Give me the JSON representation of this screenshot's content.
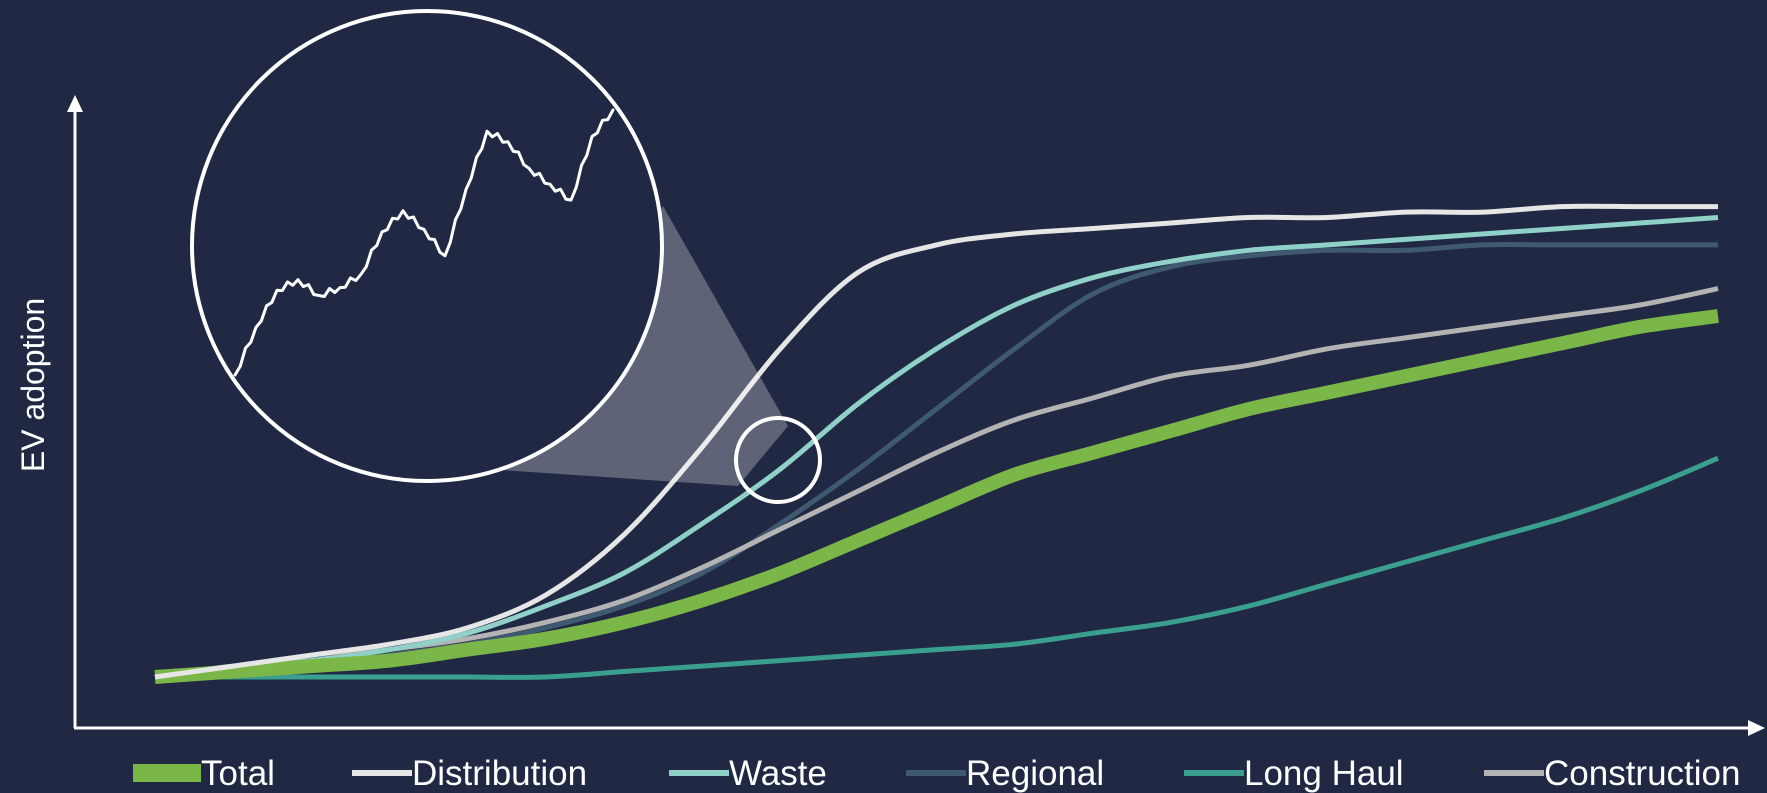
{
  "chart_data": {
    "type": "line",
    "title": "",
    "xlabel": "",
    "ylabel": "EV adoption",
    "legend_position": "bottom",
    "x_ticks": "none",
    "y_ticks": "none",
    "grid": false,
    "x": [
      0,
      0.05,
      0.1,
      0.15,
      0.2,
      0.25,
      0.3,
      0.35,
      0.4,
      0.45,
      0.5,
      0.55,
      0.6,
      0.65,
      0.7,
      0.75,
      0.8,
      0.85,
      0.9,
      0.95,
      1.0
    ],
    "series": [
      {
        "name": "Total",
        "color": "#7ab648",
        "values": [
          0.0,
          0.01,
          0.02,
          0.03,
          0.05,
          0.07,
          0.1,
          0.14,
          0.19,
          0.25,
          0.31,
          0.37,
          0.41,
          0.45,
          0.49,
          0.52,
          0.55,
          0.58,
          0.61,
          0.64,
          0.66
        ]
      },
      {
        "name": "Distribution",
        "color": "#e6e6e6",
        "values": [
          0.0,
          0.02,
          0.04,
          0.06,
          0.09,
          0.15,
          0.26,
          0.42,
          0.6,
          0.74,
          0.79,
          0.81,
          0.82,
          0.83,
          0.84,
          0.84,
          0.85,
          0.85,
          0.86,
          0.86,
          0.86
        ]
      },
      {
        "name": "Waste",
        "color": "#8fd1c8",
        "values": [
          0.0,
          0.02,
          0.03,
          0.05,
          0.08,
          0.13,
          0.19,
          0.28,
          0.38,
          0.5,
          0.6,
          0.68,
          0.73,
          0.76,
          0.78,
          0.79,
          0.8,
          0.81,
          0.82,
          0.83,
          0.84
        ]
      },
      {
        "name": "Regional",
        "color": "#3f5a70",
        "values": [
          0.0,
          0.01,
          0.02,
          0.04,
          0.06,
          0.09,
          0.13,
          0.19,
          0.28,
          0.38,
          0.49,
          0.6,
          0.7,
          0.75,
          0.77,
          0.78,
          0.78,
          0.79,
          0.79,
          0.79,
          0.79
        ]
      },
      {
        "name": "Long Haul",
        "color": "#3a9f8f",
        "values": [
          0.0,
          0.0,
          0.0,
          0.0,
          0.0,
          0.0,
          0.01,
          0.02,
          0.03,
          0.04,
          0.05,
          0.06,
          0.08,
          0.1,
          0.13,
          0.17,
          0.21,
          0.25,
          0.29,
          0.34,
          0.4
        ]
      },
      {
        "name": "Construction",
        "color": "#b3b3b3",
        "values": [
          0.0,
          0.01,
          0.03,
          0.05,
          0.07,
          0.1,
          0.14,
          0.2,
          0.27,
          0.34,
          0.41,
          0.47,
          0.51,
          0.55,
          0.57,
          0.6,
          0.62,
          0.64,
          0.66,
          0.68,
          0.71
        ]
      }
    ],
    "inset": {
      "type": "line",
      "values": [
        0.0,
        0.18,
        0.32,
        0.36,
        0.3,
        0.33,
        0.38,
        0.54,
        0.62,
        0.55,
        0.45,
        0.7,
        0.92,
        0.88,
        0.78,
        0.72,
        0.66,
        0.9,
        1.0
      ]
    }
  }
}
